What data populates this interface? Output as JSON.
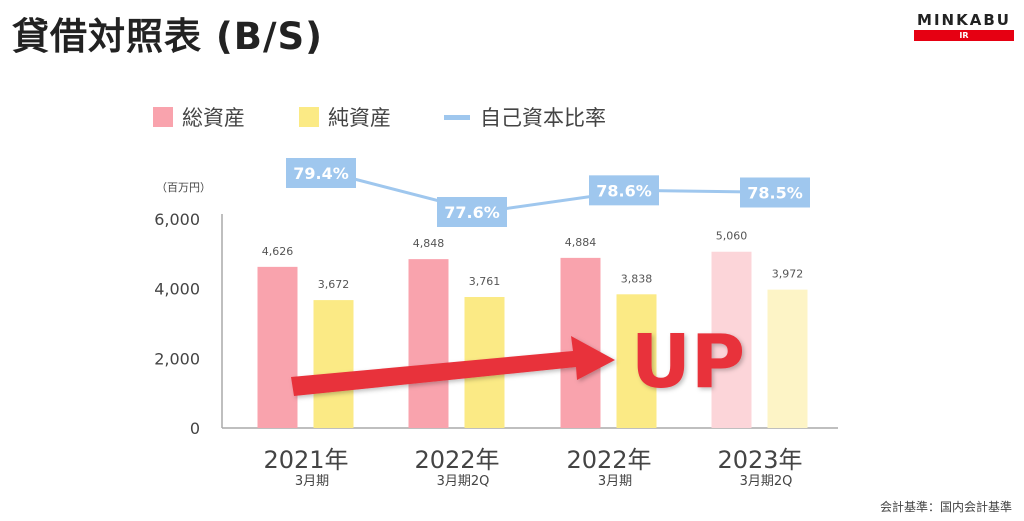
{
  "header": {
    "title": "貸借対照表 (B/S)",
    "logo_text": "MINKABU",
    "logo_sub": "IR"
  },
  "footnote": "会計基準：国内会計基準",
  "chart_data": {
    "type": "bar",
    "unit_label": "（百万円）",
    "categories": [
      {
        "year": "2021年",
        "period": "3月期"
      },
      {
        "year": "2022年",
        "period": "3月期2Q"
      },
      {
        "year": "2022年",
        "period": "3月期"
      },
      {
        "year": "2023年",
        "period": "3月期2Q"
      }
    ],
    "series": [
      {
        "name": "総資産",
        "type": "bar",
        "values": [
          4626,
          4848,
          4884,
          5060
        ],
        "value_labels": [
          "4,626",
          "4,848",
          "4,884",
          "5,060"
        ],
        "color": "#f9a3ad",
        "highlight_color": "#fcd5d9"
      },
      {
        "name": "純資産",
        "type": "bar",
        "values": [
          3672,
          3761,
          3838,
          3972
        ],
        "value_labels": [
          "3,672",
          "3,761",
          "3,838",
          "3,972"
        ],
        "color": "#fbea85",
        "highlight_color": "#fdf4c6"
      },
      {
        "name": "自己資本比率",
        "type": "line",
        "values": [
          79.4,
          77.6,
          78.6,
          78.5
        ],
        "value_labels": [
          "79.4%",
          "77.6%",
          "78.6%",
          "78.5%"
        ],
        "color": "#9fc7ee"
      }
    ],
    "ylim": [
      0,
      6000
    ],
    "yticks": [
      0,
      2000,
      4000,
      6000
    ],
    "ytick_labels": [
      "0",
      "2,000",
      "4,000",
      "6,000"
    ],
    "legend_position": "top",
    "annotation": "UP",
    "annotation_color": "#e8303a",
    "highlight_last_category": true
  }
}
